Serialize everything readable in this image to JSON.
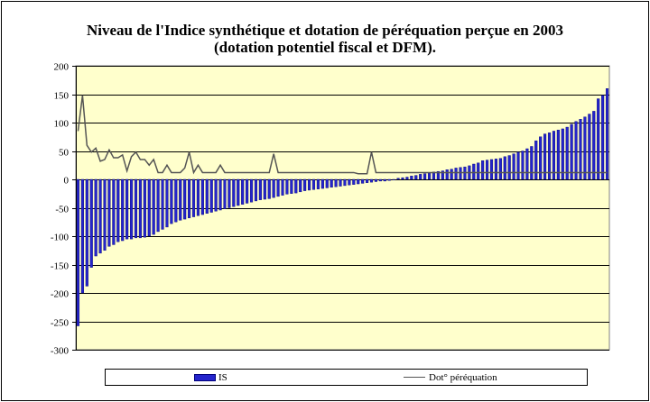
{
  "chart_data": {
    "type": "bar",
    "title_line1": "Niveau de l'Indice synthétique et dotation de péréquation perçue en 2003",
    "title_line2": "(dotation potentiel fiscal et DFM).",
    "ylim": [
      -300,
      200
    ],
    "yticks": [
      "200",
      "150",
      "100",
      "50",
      "0",
      "-50",
      "-100",
      "-150",
      "-200",
      "-250",
      "-300"
    ],
    "ytick_values": [
      200,
      150,
      100,
      50,
      0,
      -50,
      -100,
      -150,
      -200,
      -250,
      -300
    ],
    "grid": true,
    "legend_position": "bottom",
    "plot_background": "#ffffcc",
    "series": [
      {
        "name": "IS",
        "kind": "bar",
        "color": "#2424cc",
        "values": [
          -258,
          -200,
          -188,
          -155,
          -135,
          -130,
          -125,
          -118,
          -115,
          -110,
          -108,
          -105,
          -105,
          -103,
          -103,
          -102,
          -100,
          -97,
          -92,
          -88,
          -84,
          -78,
          -75,
          -72,
          -70,
          -68,
          -66,
          -64,
          -62,
          -60,
          -58,
          -56,
          -54,
          -52,
          -50,
          -48,
          -46,
          -44,
          -42,
          -40,
          -38,
          -36,
          -35,
          -34,
          -32,
          -30,
          -28,
          -26,
          -25,
          -24,
          -22,
          -20,
          -19,
          -18,
          -17,
          -16,
          -15,
          -14,
          -13,
          -12,
          -11,
          -10,
          -9,
          -8,
          -7,
          -6,
          -5,
          -4,
          -3,
          -3,
          -2,
          -1,
          2,
          3,
          4,
          6,
          7,
          9,
          10,
          12,
          13,
          14,
          15,
          17,
          18,
          20,
          21,
          22,
          24,
          27,
          29,
          33,
          34,
          35,
          36,
          37,
          40,
          42,
          45,
          48,
          50,
          54,
          58,
          68,
          75,
          80,
          82,
          85,
          87,
          89,
          92,
          97,
          102,
          106,
          110,
          115,
          120,
          142,
          148,
          160
        ]
      },
      {
        "name": "Dot° péréquation",
        "kind": "line",
        "color": "#555555",
        "values": [
          85,
          148,
          60,
          48,
          55,
          32,
          35,
          52,
          38,
          38,
          43,
          15,
          40,
          48,
          35,
          35,
          25,
          35,
          12,
          12,
          25,
          12,
          12,
          12,
          20,
          48,
          12,
          25,
          12,
          12,
          12,
          12,
          25,
          12,
          12,
          12,
          12,
          12,
          12,
          12,
          12,
          12,
          12,
          12,
          45,
          12,
          12,
          12,
          12,
          12,
          12,
          12,
          12,
          12,
          12,
          12,
          12,
          12,
          12,
          12,
          12,
          12,
          12,
          10,
          10,
          10,
          48,
          12,
          12,
          12,
          12,
          12,
          12,
          12,
          12,
          12,
          12,
          12,
          12,
          12,
          12,
          12,
          12,
          12,
          12,
          12,
          12,
          12,
          12,
          12,
          12,
          12,
          12,
          12,
          12,
          12,
          12,
          12,
          12,
          12,
          12,
          12,
          12,
          12,
          12,
          12,
          12,
          12,
          12,
          12,
          12,
          12,
          12,
          12,
          12,
          12,
          12,
          12,
          12,
          12
        ]
      }
    ]
  }
}
